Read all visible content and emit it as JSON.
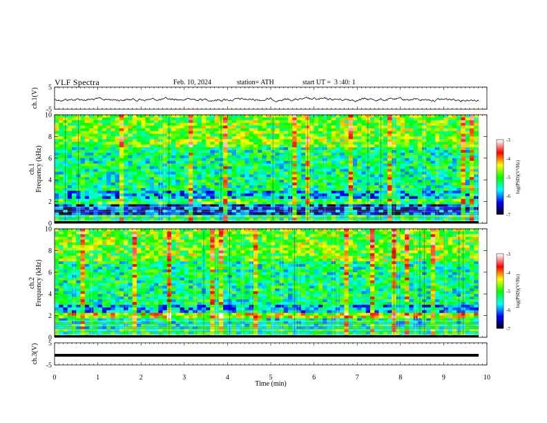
{
  "header": {
    "title": "VLF Spectra",
    "date": "Feb. 10, 2024",
    "station": "station= ATH",
    "start": "start UT =  3 :40: 1"
  },
  "chart_data": [
    {
      "type": "line",
      "name": "ch1-waveform",
      "ylabel": "ch.1(V)",
      "ylim": [
        -5,
        5
      ],
      "y_ticks": [
        "5",
        "-5"
      ],
      "xlim": [
        0,
        10
      ],
      "grid": false
    },
    {
      "type": "heatmap",
      "name": "ch1-spectrogram",
      "ylabel": "ch.1 Frequency (kHz)",
      "ylim": [
        0,
        10
      ],
      "y_ticks": [
        "0",
        "2",
        "4",
        "6",
        "8",
        "10"
      ],
      "xlim": [
        0,
        10
      ],
      "colorbar": {
        "label": "log(PSD)(V²/Hz)",
        "range": [
          -7,
          -3
        ],
        "ticks": [
          "-3",
          "-4",
          "-5",
          "-6",
          "-7"
        ],
        "colors": [
          "#000000",
          "#0000ff",
          "#00ffff",
          "#00ff00",
          "#ffff00",
          "#ff0000",
          "#ffffff"
        ]
      }
    },
    {
      "type": "heatmap",
      "name": "ch2-spectrogram",
      "ylabel": "ch.2 Frequency (kHz)",
      "ylim": [
        0,
        10
      ],
      "y_ticks": [
        "0",
        "2",
        "4",
        "6",
        "8",
        "10"
      ],
      "xlim": [
        0,
        10
      ],
      "colorbar": {
        "label": "log(PSD)(V²/Hz)",
        "range": [
          -7,
          -3
        ],
        "ticks": [
          "-3",
          "-4",
          "-5",
          "-6",
          "-7"
        ],
        "colors": [
          "#000000",
          "#0000ff",
          "#00ffff",
          "#00ff00",
          "#ffff00",
          "#ff0000",
          "#ffffff"
        ]
      }
    },
    {
      "type": "line",
      "name": "ch3-waveform",
      "ylabel": "ch.3(V)",
      "ylim": [
        -5,
        5
      ],
      "y_ticks": [
        "5",
        "-5"
      ],
      "xlim": [
        0,
        10
      ],
      "xlabel": "Time  (min)",
      "x_ticks": [
        "0",
        "1",
        "2",
        "3",
        "4",
        "5",
        "6",
        "7",
        "8",
        "9",
        "10"
      ],
      "grid": false
    }
  ]
}
